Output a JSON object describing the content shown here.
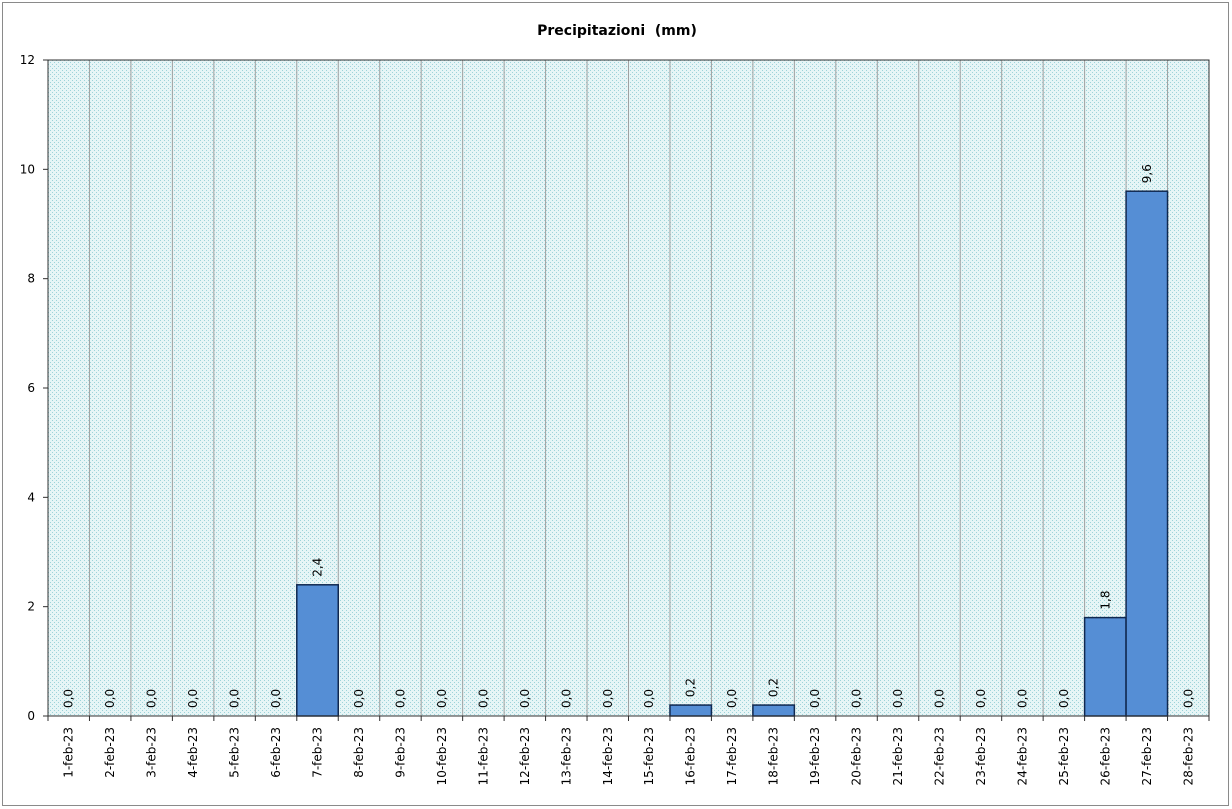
{
  "chart_data": {
    "type": "bar",
    "title": "Precipitazioni  (mm)",
    "xlabel": "",
    "ylabel": "",
    "categories": [
      "1-feb-23",
      "2-feb-23",
      "3-feb-23",
      "4-feb-23",
      "5-feb-23",
      "6-feb-23",
      "7-feb-23",
      "8-feb-23",
      "9-feb-23",
      "10-feb-23",
      "11-feb-23",
      "12-feb-23",
      "13-feb-23",
      "14-feb-23",
      "15-feb-23",
      "16-feb-23",
      "17-feb-23",
      "18-feb-23",
      "19-feb-23",
      "20-feb-23",
      "21-feb-23",
      "22-feb-23",
      "23-feb-23",
      "24-feb-23",
      "25-feb-23",
      "26-feb-23",
      "27-feb-23",
      "28-feb-23"
    ],
    "values": [
      0,
      0,
      0,
      0,
      0,
      0,
      2.4,
      0,
      0,
      0,
      0,
      0,
      0,
      0,
      0,
      0.2,
      0,
      0.2,
      0,
      0,
      0,
      0,
      0,
      0,
      0,
      1.8,
      9.6,
      0
    ],
    "data_labels": [
      "0,0",
      "0,0",
      "0,0",
      "0,0",
      "0,0",
      "0,0",
      "2,4",
      "0,0",
      "0,0",
      "0,0",
      "0,0",
      "0,0",
      "0,0",
      "0,0",
      "0,0",
      "0,2",
      "0,0",
      "0,2",
      "0,0",
      "0,0",
      "0,0",
      "0,0",
      "0,0",
      "0,0",
      "0,0",
      "1,8",
      "9,6",
      "0,0"
    ],
    "ylim": [
      0,
      12
    ],
    "yticks": [
      0,
      2,
      4,
      6,
      8,
      10,
      12
    ],
    "grid": {
      "vertical": true,
      "horizontal": false
    },
    "legend": "none",
    "colors": {
      "bar_fill": "#558ED5",
      "bar_stroke": "#10284F",
      "plot_background": "#E6F5F6",
      "plot_dots": "#9DD3D9",
      "gridline": "#A0A0A0",
      "axis": "#303030",
      "frame": "#8A8A8A"
    }
  }
}
